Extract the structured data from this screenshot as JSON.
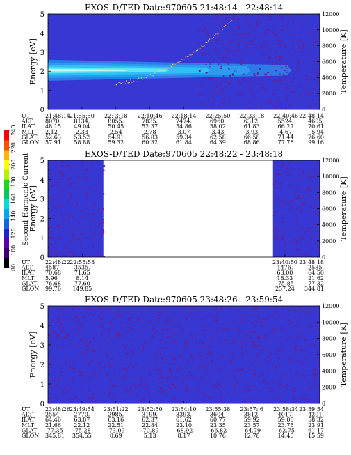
{
  "colorbar": {
    "label": "Second Harmonic Current",
    "tick_labels": [
      "80",
      "100",
      "120",
      "140",
      "160",
      "180",
      "200",
      "220",
      "240"
    ]
  },
  "chart_data": [
    {
      "type": "heatmap",
      "title": "EXOS-D/TED    Date:970605  21:48:14 - 22:48:14",
      "ylabel": "Energy [eV]",
      "y2label": "Temperature [K]",
      "ylim": [
        0,
        5
      ],
      "y_ticks": [
        "0",
        "1",
        "2",
        "3",
        "4",
        "5"
      ],
      "y2lim": [
        0,
        12000
      ],
      "y2_ticks": [
        "0",
        "2000",
        "4000",
        "6000",
        "8000",
        "10000",
        "12000"
      ],
      "data_gaps": [],
      "band": {
        "center_ev": 2.05,
        "half_width_ev": 0.55,
        "fade_end_fraction": 0.88,
        "rising_feature": true
      },
      "orbit_table": {
        "row_labels": [
          "UT",
          "ALT",
          "ILAT",
          "MLT",
          "GLAT",
          "GLON"
        ],
        "columns": [
          [
            "21:48:14",
            "8070.",
            "48.15",
            "2.12",
            "52.63",
            "57.91"
          ],
          [
            "21:55:50",
            "8134.",
            "49.04",
            "2.33",
            "53.52",
            "58.88"
          ],
          [
            "22: 3:18",
            "8055.",
            "50.45",
            "2.54",
            "54.91",
            "59.32"
          ],
          [
            "22:10:46",
            "7835.",
            "52.37",
            "2.78",
            "56.83",
            "60.32"
          ],
          [
            "22:18:14",
            "7474.",
            "54.86",
            "3.07",
            "59.34",
            "61.84"
          ],
          [
            "22:25:50",
            "6960.",
            "58.02",
            "3.43",
            "62.58",
            "64.39"
          ],
          [
            "22:33:18",
            "6312.",
            "61.83",
            "3.93",
            "66.58",
            "68.86"
          ],
          [
            "22:40:46",
            "5524.",
            "66.27",
            "4.67",
            "71.44",
            "77.78"
          ],
          [
            "22:48:14",
            "4605.",
            "70.61",
            "5.94",
            "76.60",
            "99.16"
          ]
        ]
      }
    },
    {
      "type": "heatmap",
      "title": "EXOS-D/TED    Date:970605  22:48:22 - 23:48:18",
      "ylabel": "Energy [eV]",
      "y2label": "Temperature [K]",
      "ylim": [
        0,
        5
      ],
      "y_ticks": [
        "0",
        "1",
        "2",
        "3",
        "4",
        "5"
      ],
      "y2lim": [
        0,
        12000
      ],
      "y2_ticks": [
        "0",
        "2000",
        "4000",
        "6000",
        "8000",
        "10000",
        "12000"
      ],
      "data_gaps": [
        [
          0.204,
          0.828
        ]
      ],
      "orbit_table": {
        "row_labels": [
          "UT",
          "ALT",
          "ILAT",
          "MLT",
          "GLAT",
          "GLON"
        ],
        "columns": [
          [
            "22:48:22",
            "4587.",
            "70.68",
            "5.96",
            "76.68",
            "99.76"
          ],
          [
            "22:55:58",
            "3535.",
            "71.65",
            "8.14",
            "77.60",
            "149.85"
          ],
          [
            "23:40:50",
            "1476.",
            "63.00",
            "18.33",
            "-75.85",
            "257.24"
          ],
          [
            "23:48:18",
            "2535.",
            "64.50",
            "21.62",
            "-77.32",
            "344.81"
          ]
        ],
        "column_positions": [
          0,
          0.126,
          0.872,
          1.0
        ]
      }
    },
    {
      "type": "heatmap",
      "title": "EXOS-D/TED    Date:970605  23:48:26 - 23:59:54",
      "ylabel": "Energy [eV]",
      "y2label": "Temperature [K]",
      "ylim": [
        0,
        5
      ],
      "y_ticks": [
        "0",
        "1",
        "2",
        "3",
        "4",
        "5"
      ],
      "y2lim": [
        0,
        12000
      ],
      "y2_ticks": [
        "0",
        "2000",
        "4000",
        "6000",
        "8000",
        "10000",
        "12000"
      ],
      "data_gaps": [],
      "orbit_table": {
        "row_labels": [
          "UT",
          "ALT",
          "ILAT",
          "MLT",
          "GLAT",
          "GLON"
        ],
        "columns": [
          [
            "23:48:26",
            "2554.",
            "64.46",
            "21.66",
            "-77.35",
            "345.81"
          ],
          [
            "23:49:54",
            "2770.",
            "63.87",
            "22.12",
            "-75.28",
            "354.55"
          ],
          [
            "23:51:22",
            "2985.",
            "63.16",
            "22.51",
            "-73.09",
            "0.69"
          ],
          [
            "23:52:50",
            "3199.",
            "62.37",
            "22.84",
            "-70.89",
            "5.13"
          ],
          [
            "23:54:10",
            "3393.",
            "61.62",
            "23.10",
            "-68.92",
            "8.17"
          ],
          [
            "23:55:38",
            "3604.",
            "60.77",
            "23.35",
            "-66.82",
            "10.76"
          ],
          [
            "23:57: 6",
            "3812.",
            "59.92",
            "23.57",
            "-64.79",
            "12.78"
          ],
          [
            "23:58:34",
            "4017.",
            "59.08",
            "23.75",
            "-62.75",
            "14.40"
          ],
          [
            "23:59:54",
            "4201.",
            "58.32",
            "23.91",
            "-61.17",
            "15.59"
          ]
        ]
      }
    }
  ]
}
